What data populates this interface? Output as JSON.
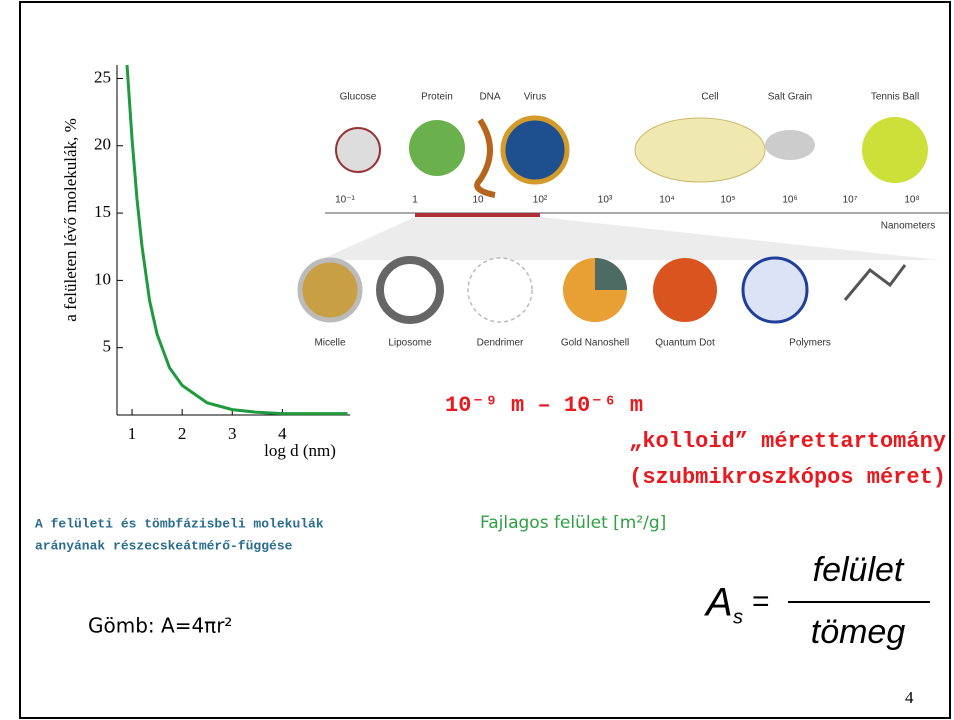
{
  "chart_data": {
    "type": "line",
    "ylabel": "a felületen lévő molekulák, %",
    "xlabel": "log d (nm)",
    "x": [
      0.9,
      1.0,
      1.1,
      1.2,
      1.35,
      1.5,
      1.75,
      2.0,
      2.5,
      3.0,
      3.5,
      4.0,
      4.5,
      5.3
    ],
    "values": [
      26,
      20.5,
      16,
      12.5,
      8.5,
      6,
      3.5,
      2.2,
      0.9,
      0.4,
      0.2,
      0.1,
      0.1,
      0.1
    ],
    "color": "#1f9a3f",
    "xlim": [
      0.7,
      5.35
    ],
    "ylim": [
      0,
      26
    ],
    "xticks": [
      1,
      2,
      3,
      4
    ],
    "yticks": [
      5,
      10,
      15,
      20,
      25
    ]
  },
  "scale": {
    "top_labels": [
      "Glucose",
      "Protein",
      "DNA",
      "Virus",
      "Cell",
      "Salt Grain",
      "Tennis Ball"
    ],
    "ticks": [
      "10⁻¹",
      "1",
      "10",
      "10²",
      "10³",
      "10⁴",
      "10⁵",
      "10⁶",
      "10⁷",
      "10⁸"
    ],
    "unit": "Nanometers",
    "bottom_labels": [
      "Micelle",
      "Liposome",
      "Dendrimer",
      "Gold Nanoshell",
      "Quantum Dot",
      "Polymers"
    ]
  },
  "range": {
    "line1": "10⁻⁹ m – 10⁻⁶ m",
    "line2": "„kolloid” mérettartomány",
    "line3": "(szubmikroszkópos méret)"
  },
  "caption": {
    "line1": "A felületi és tömbfázisbeli molekulák",
    "line2": "arányának részecskeátmérő-függése"
  },
  "specific": "Fajlagos felület [m²/g]",
  "sphere": "Gömb: A=4πr²",
  "formula": {
    "lhs": "A",
    "sub": "s",
    "eq": "=",
    "numerator": "felület",
    "denominator": "tömeg"
  },
  "page": "4"
}
